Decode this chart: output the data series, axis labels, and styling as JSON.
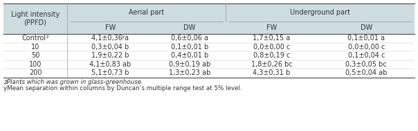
{
  "col1_header": "Light intensity\n(PPFD)",
  "aerial_header": "Aerial part",
  "underground_header": "Underground part",
  "subheaders": [
    "FW",
    "DW",
    "FW",
    "DW"
  ],
  "rows": [
    [
      "Controlz",
      "4,1±0,36 ay",
      "0,6±0,06 a",
      "1,7±0,15 a",
      "0,1±0,01 a"
    ],
    [
      "10",
      "0,3±0,04 b",
      "0,1±0,01 b",
      "0,0±0,00 c",
      "0,0±0,00 c"
    ],
    [
      "50",
      "1,9±0,22 b",
      "0,4±0,01 b",
      "0,8±0,19 c",
      "0,1±0,04 c"
    ],
    [
      "100",
      "4,1±0,83 ab",
      "0,9±0,19 ab",
      "1,8±0,26 bc",
      "0,3±0,05 bc"
    ],
    [
      "200",
      "5,1±0,73 b",
      "1,3±0,23 ab",
      "4,3±0,31 b",
      "0,5±0,04 ab"
    ]
  ],
  "footnote1": "zPlants which was grown in glass-greenhouse.",
  "footnote2": "yMean separation within columns by Duncan’s multiple range test at 5% level.",
  "header_bg": "#cddde0",
  "fig_width": 6.04,
  "fig_height": 1.89,
  "dpi": 100
}
